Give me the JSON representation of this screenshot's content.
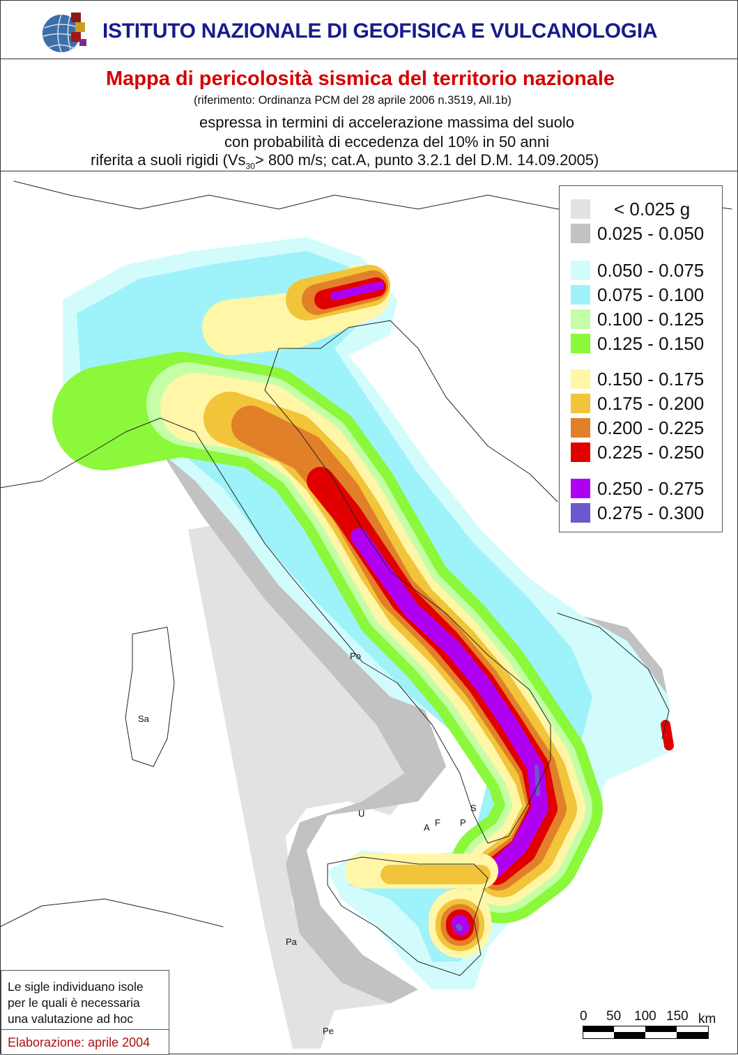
{
  "header": {
    "institute": "ISTITUTO NAZIONALE DI GEOFISICA E VULCANOLOGIA",
    "logo": "ingv-globe-logo"
  },
  "titles": {
    "main": "Mappa di pericolosità sismica del territorio nazionale",
    "reference": "(riferimento: Ordinanza PCM del 28 aprile 2006 n.3519, All.1b)",
    "line1": "espressa in termini di accelerazione massima del suolo",
    "line2": "con probabilità di eccedenza del 10% in 50 anni",
    "line3_pre": "riferita a suoli rigidi (Vs",
    "line3_sub": "30",
    "line3_post": "> 800 m/s; cat.A, punto 3.2.1 del D.M. 14.09.2005)"
  },
  "legend": [
    {
      "label": "< 0.025 g",
      "color": "#e2e2e2"
    },
    {
      "label": "0.025 - 0.050",
      "color": "#c2c2c2"
    },
    {
      "label": "0.050 - 0.075",
      "color": "#d2fcfc"
    },
    {
      "label": "0.075 - 0.100",
      "color": "#9ef2fa"
    },
    {
      "label": "0.100 - 0.125",
      "color": "#c4ffa8"
    },
    {
      "label": "0.125 - 0.150",
      "color": "#8cf83c"
    },
    {
      "label": "0.150 - 0.175",
      "color": "#fff6a8"
    },
    {
      "label": "0.175 - 0.200",
      "color": "#f2c43a"
    },
    {
      "label": "0.200 - 0.225",
      "color": "#e2802a"
    },
    {
      "label": "0.225 - 0.250",
      "color": "#e00000"
    },
    {
      "label": "0.250 - 0.275",
      "color": "#b000f2"
    },
    {
      "label": "0.275 - 0.300",
      "color": "#6a58cc"
    }
  ],
  "island_labels": [
    "Po",
    "Sa",
    "U",
    "A",
    "F",
    "P",
    "S",
    "Pa",
    "Pe"
  ],
  "note": {
    "lines": [
      "Le sigle individuano isole",
      "per le quali è necessaria",
      "una valutazione ad hoc"
    ],
    "elaboration": "Elaborazione: aprile 2004"
  },
  "scale": {
    "ticks": [
      "0",
      "50",
      "100",
      "150"
    ],
    "unit": "km"
  }
}
